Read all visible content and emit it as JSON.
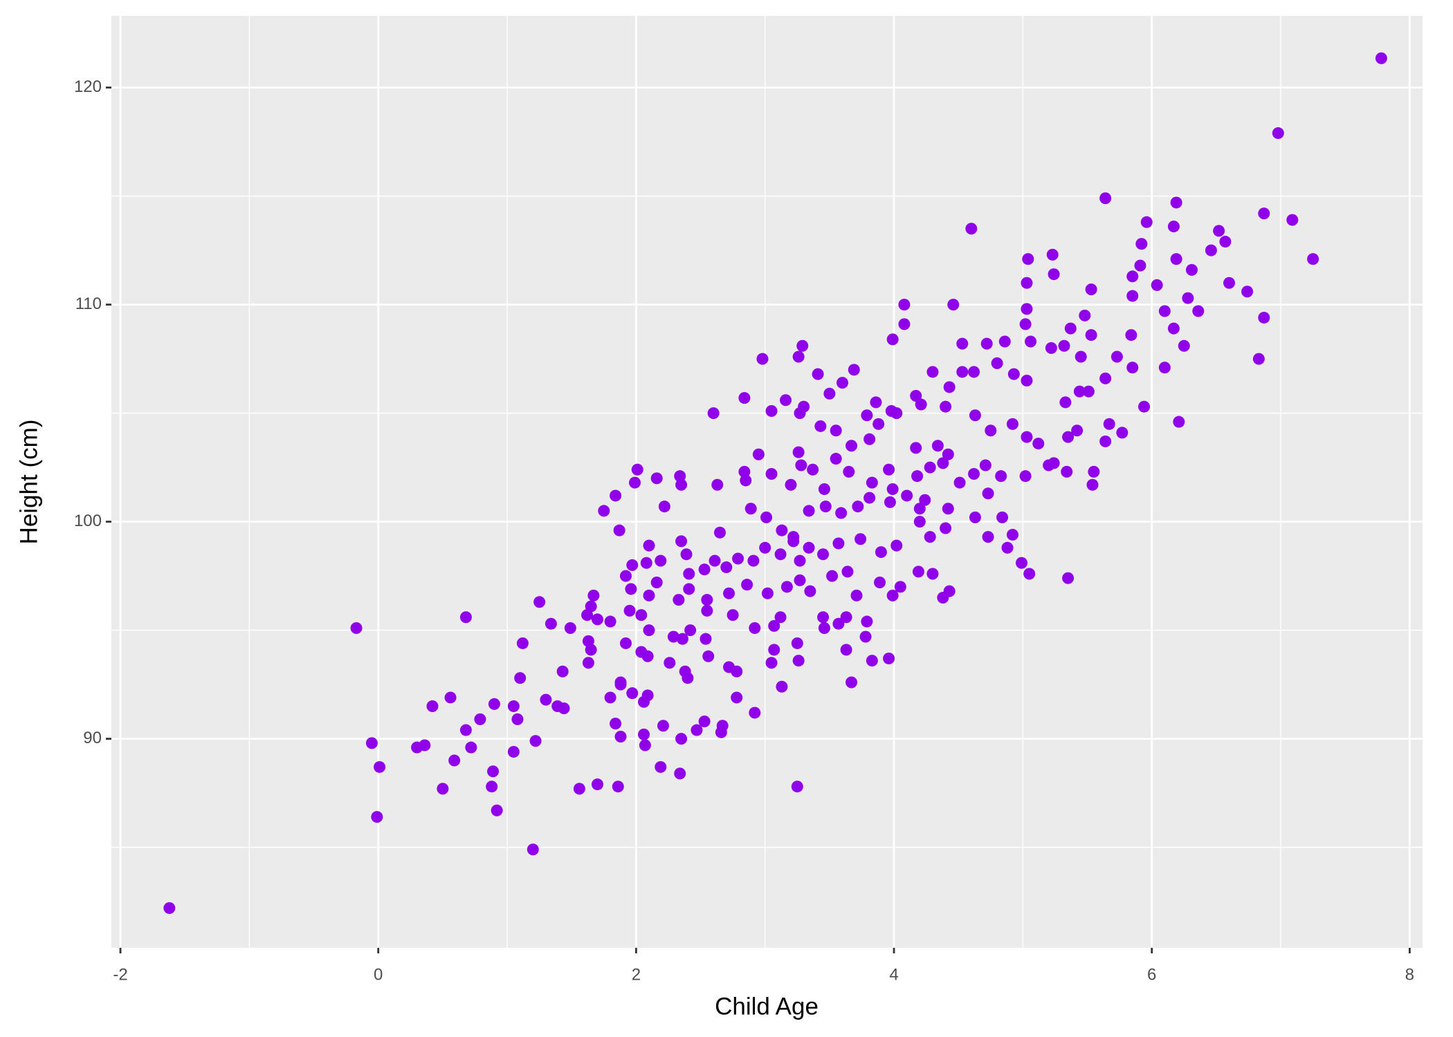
{
  "chart_data": {
    "type": "scatter",
    "x_label": "Child Age",
    "y_label": "Height (cm)",
    "x": [
      -1.62,
      7.78,
      6.98,
      7.09,
      7.25,
      6.87,
      6.87,
      6.83,
      6.74,
      6.6,
      6.57,
      6.52,
      6.46,
      6.36,
      6.19,
      6.17,
      6.19,
      6.31,
      6.28,
      6.25,
      6.21,
      6.17,
      6.1,
      6.1,
      6.04,
      5.96,
      5.92,
      5.91,
      5.85,
      5.85,
      5.84,
      5.85,
      5.94,
      5.64,
      5.53,
      5.48,
      5.53,
      5.45,
      5.73,
      5.64,
      5.51,
      5.44,
      5.33,
      5.42,
      5.67,
      5.77,
      5.64,
      5.35,
      5.35,
      5.54,
      5.55,
      5.34,
      5.24,
      5.2,
      5.23,
      5.24,
      5.04,
      5.03,
      5.03,
      5.02,
      5.06,
      5.22,
      5.32,
      5.37,
      4.6,
      4.46,
      4.53,
      4.72,
      4.86,
      4.8,
      4.93,
      5.03,
      4.53,
      4.62,
      4.43,
      4.63,
      4.75,
      4.92,
      5.03,
      5.12,
      5.02,
      4.83,
      4.71,
      4.62,
      4.73,
      4.63,
      4.84,
      4.92,
      4.73,
      4.88,
      4.99,
      5.05,
      4.08,
      4.08,
      3.99,
      4.3,
      4.17,
      4.21,
      4.4,
      3.98,
      4.02,
      3.88,
      3.79,
      3.81,
      3.67,
      3.55,
      3.43,
      3.3,
      3.27,
      3.16,
      3.05,
      2.98,
      3.29,
      3.26,
      3.41,
      3.5,
      3.6,
      3.69,
      3.86,
      2.6,
      2.84,
      2.01,
      1.99,
      2.16,
      2.34,
      2.35,
      2.22,
      1.84,
      1.75,
      1.87,
      2.63,
      2.84,
      2.85,
      2.95,
      3.05,
      3.2,
      3.26,
      3.28,
      3.37,
      3.46,
      3.55,
      3.65,
      3.83,
      3.96,
      3.99,
      4.1,
      4.18,
      4.24,
      4.28,
      4.38,
      4.34,
      4.42,
      4.51,
      4.17,
      2.65,
      2.89,
      3.01,
      3.13,
      3.22,
      3.34,
      3.47,
      3.59,
      3.72,
      3.81,
      3.97,
      4.2,
      4.28,
      4.42,
      4.4,
      4.2,
      4.02,
      3.9,
      3.74,
      3.57,
      3.45,
      3.34,
      3.27,
      3.22,
      3.12,
      3.0,
      2.91,
      2.79,
      2.7,
      2.61,
      2.53,
      2.41,
      2.39,
      2.35,
      2.19,
      2.08,
      2.1,
      1.97,
      1.96,
      1.92,
      2.16,
      2.1,
      2.33,
      2.41,
      2.55,
      2.72,
      2.86,
      3.02,
      3.17,
      3.27,
      3.35,
      3.52,
      3.64,
      3.71,
      3.89,
      4.05,
      3.99,
      4.19,
      4.3,
      4.43,
      4.38,
      1.67,
      1.65,
      1.62,
      1.7,
      1.8,
      1.95,
      2.04,
      2.1,
      1.63,
      1.65,
      1.63,
      1.92,
      2.04,
      2.09,
      2.29,
      2.36,
      2.42,
      2.54,
      2.55,
      2.75,
      2.92,
      3.07,
      3.12,
      3.45,
      3.46,
      3.63,
      3.79,
      3.57,
      3.63,
      3.78,
      3.83,
      3.96,
      3.25,
      3.07,
      3.05,
      3.26,
      3.13,
      3.67,
      2.78,
      2.72,
      2.56,
      2.38,
      2.4,
      2.26,
      1.88,
      1.88,
      1.97,
      2.09,
      1.8,
      2.06,
      2.78,
      2.92,
      2.21,
      2.47,
      2.53,
      2.67,
      2.66,
      1.84,
      2.06,
      2.07,
      2.35,
      1.88,
      2.19,
      2.34,
      1.7,
      1.56,
      1.86,
      3.25,
      1.2,
      -0.01,
      0.01,
      -0.05,
      -0.17,
      0.68,
      0.3,
      0.36,
      0.5,
      0.59,
      0.68,
      0.72,
      0.79,
      0.56,
      0.42,
      0.9,
      0.89,
      0.88,
      0.92,
      1.05,
      1.08,
      1.05,
      1.22,
      1.1,
      1.12,
      1.25,
      1.3,
      1.34,
      1.39,
      1.44,
      1.43,
      1.49
    ],
    "series": [
      {
        "color": "#9000e8",
        "values": [
          82.2,
          121.35,
          117.9,
          113.9,
          112.1,
          114.2,
          109.4,
          107.5,
          110.6,
          111.0,
          112.9,
          113.4,
          112.5,
          109.7,
          114.7,
          113.6,
          112.1,
          111.6,
          110.3,
          108.1,
          104.6,
          108.9,
          109.7,
          107.1,
          110.9,
          113.8,
          112.8,
          111.8,
          111.3,
          110.4,
          108.6,
          107.1,
          105.3,
          114.9,
          110.7,
          109.5,
          108.6,
          107.6,
          107.6,
          106.6,
          106.0,
          106.0,
          105.5,
          104.2,
          104.5,
          104.1,
          103.7,
          103.9,
          97.4,
          101.7,
          102.3,
          102.3,
          102.7,
          102.6,
          112.3,
          111.4,
          112.1,
          111.0,
          109.8,
          109.1,
          108.3,
          108.0,
          108.1,
          108.9,
          113.5,
          110.0,
          108.2,
          108.2,
          108.3,
          107.3,
          106.8,
          106.5,
          106.9,
          106.9,
          106.2,
          104.9,
          104.2,
          104.5,
          103.9,
          103.6,
          102.1,
          102.1,
          102.6,
          102.2,
          101.3,
          100.2,
          100.2,
          99.4,
          99.3,
          98.8,
          98.1,
          97.6,
          110.0,
          109.1,
          108.4,
          106.9,
          105.8,
          105.4,
          105.3,
          105.1,
          105.0,
          104.5,
          104.9,
          103.8,
          103.5,
          104.2,
          104.4,
          105.3,
          105.0,
          105.6,
          105.1,
          107.5,
          108.1,
          107.6,
          106.8,
          105.9,
          106.4,
          107.0,
          105.5,
          105.0,
          105.7,
          102.4,
          101.8,
          102.0,
          102.1,
          101.7,
          100.7,
          101.2,
          100.5,
          99.6,
          101.7,
          102.3,
          101.9,
          103.1,
          102.2,
          101.7,
          103.2,
          102.6,
          102.4,
          101.5,
          102.9,
          102.3,
          101.8,
          102.4,
          101.5,
          101.2,
          102.1,
          101.0,
          102.5,
          102.7,
          103.5,
          103.1,
          101.8,
          103.4,
          99.5,
          100.6,
          100.2,
          99.6,
          99.3,
          100.5,
          100.7,
          100.4,
          100.7,
          101.1,
          100.9,
          100.0,
          99.3,
          100.6,
          99.7,
          100.6,
          98.9,
          98.6,
          99.2,
          99.0,
          98.5,
          98.8,
          98.2,
          99.1,
          98.5,
          98.8,
          98.2,
          98.3,
          97.9,
          98.2,
          97.8,
          97.6,
          98.5,
          99.1,
          98.2,
          98.1,
          98.9,
          98.0,
          96.9,
          97.5,
          97.2,
          96.6,
          96.4,
          96.9,
          96.4,
          96.7,
          97.1,
          96.7,
          97.0,
          97.3,
          96.8,
          97.5,
          97.7,
          96.6,
          97.2,
          97.0,
          96.6,
          97.7,
          97.6,
          96.8,
          96.5,
          96.6,
          96.1,
          95.7,
          95.5,
          95.4,
          95.9,
          95.7,
          95.0,
          94.5,
          94.1,
          93.5,
          94.4,
          94.0,
          93.8,
          94.7,
          94.6,
          95.0,
          94.6,
          95.9,
          95.7,
          95.1,
          95.2,
          95.6,
          95.6,
          95.1,
          95.6,
          95.4,
          95.3,
          94.1,
          94.7,
          93.6,
          93.7,
          94.4,
          94.1,
          93.5,
          93.6,
          92.4,
          92.6,
          93.1,
          93.3,
          93.8,
          93.1,
          92.8,
          93.5,
          92.6,
          92.5,
          92.1,
          92.0,
          91.9,
          91.7,
          91.9,
          91.2,
          90.6,
          90.4,
          90.8,
          90.6,
          90.3,
          90.7,
          90.2,
          89.7,
          90.0,
          90.1,
          88.7,
          88.4,
          87.9,
          87.7,
          87.8,
          87.8,
          84.9,
          86.4,
          88.7,
          89.8,
          95.1,
          95.6,
          89.6,
          89.7,
          87.7,
          89.0,
          90.4,
          89.6,
          90.9,
          91.9,
          91.5,
          91.6,
          88.5,
          87.8,
          86.7,
          91.5,
          90.9,
          89.4,
          89.9,
          92.8,
          94.4,
          96.3,
          91.8,
          95.3,
          91.5,
          91.4,
          93.1,
          95.1
        ]
      }
    ],
    "xlim": [
      -2.07,
      8.1
    ],
    "ylim": [
      80.37,
      123.3
    ],
    "xticks": [
      -2,
      0,
      2,
      4,
      6,
      8
    ],
    "yticks": [
      90,
      100,
      110,
      120
    ],
    "x_minor_ticks": [
      -1,
      1,
      3,
      5,
      7
    ],
    "y_minor_ticks": [
      85,
      95,
      105,
      115
    ],
    "grid": true,
    "background": "#ebebeb"
  }
}
